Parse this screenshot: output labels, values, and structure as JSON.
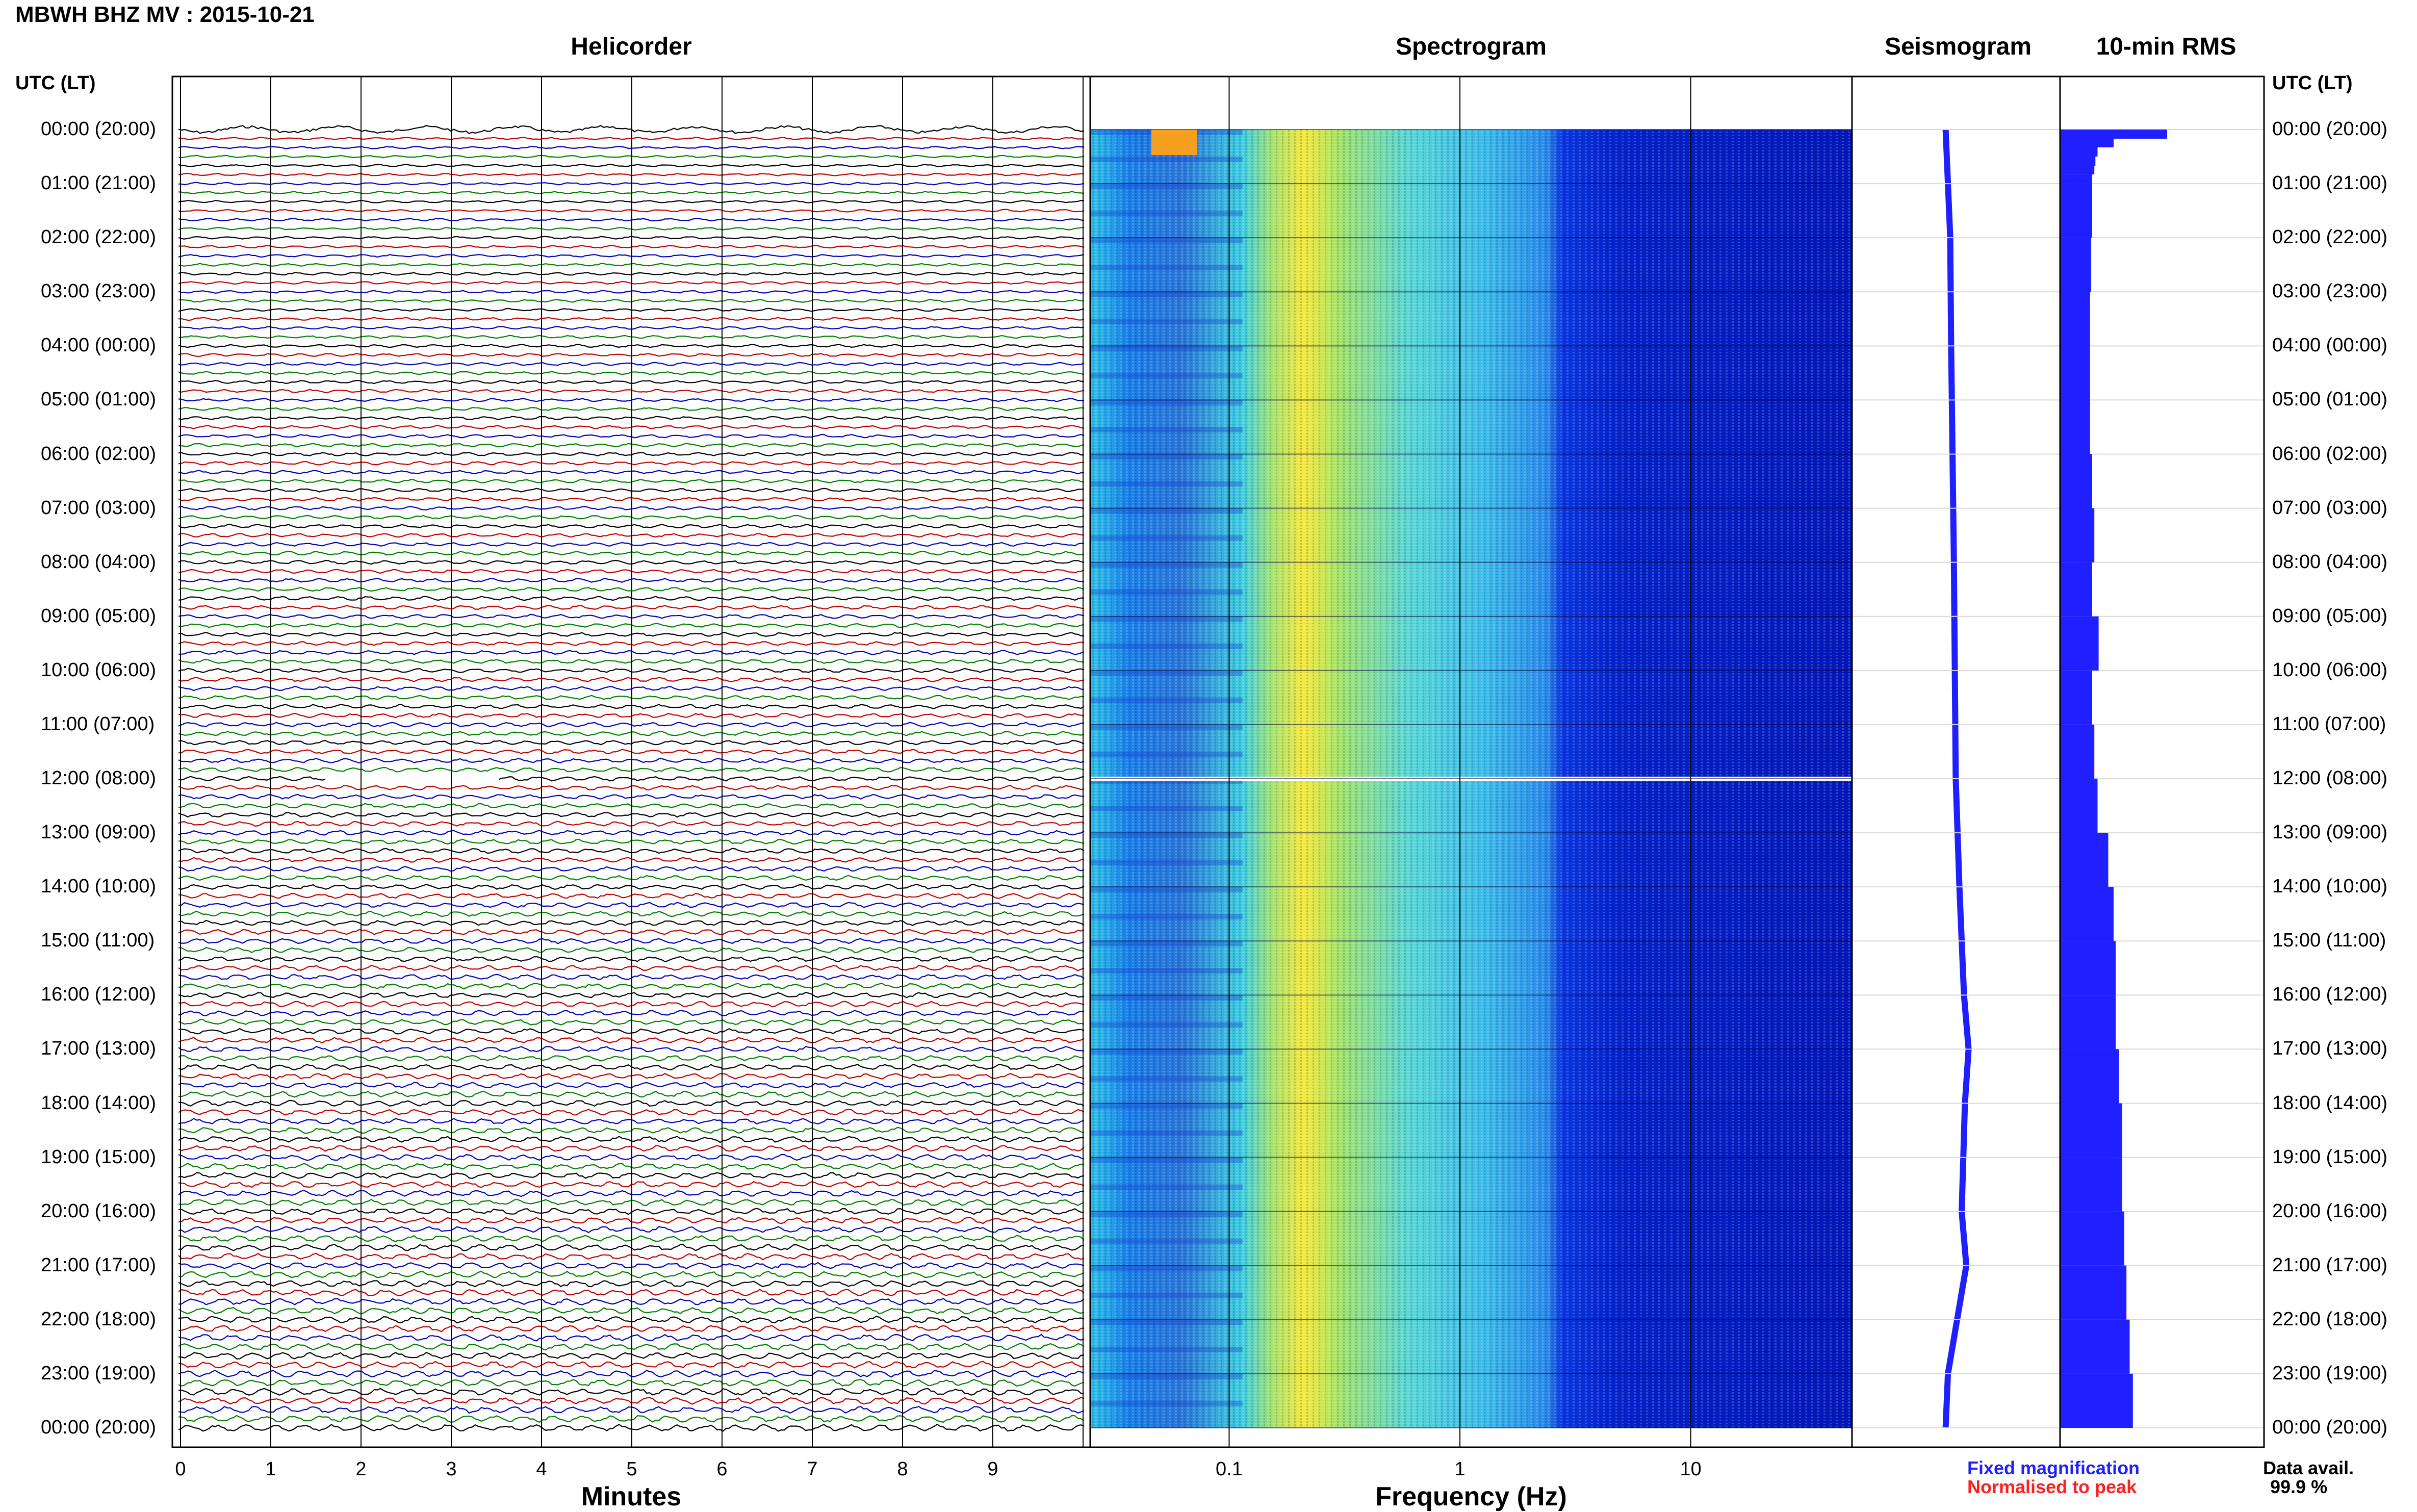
{
  "header": {
    "title": "MBWH BHZ MV : 2015-10-21"
  },
  "panels": {
    "helicorder_title": "Helicorder",
    "spectrogram_title": "Spectrogram",
    "seismogram_title": "Seismogram",
    "rms_title": "10-min RMS"
  },
  "axes": {
    "time_header_left": "UTC (LT)",
    "time_header_right": "UTC (LT)",
    "time_labels": [
      "00:00 (20:00)",
      "01:00 (21:00)",
      "02:00 (22:00)",
      "03:00 (23:00)",
      "04:00 (00:00)",
      "05:00 (01:00)",
      "06:00 (02:00)",
      "07:00 (03:00)",
      "08:00 (04:00)",
      "09:00 (05:00)",
      "10:00 (06:00)",
      "11:00 (07:00)",
      "12:00 (08:00)",
      "13:00 (09:00)",
      "14:00 (10:00)",
      "15:00 (11:00)",
      "16:00 (12:00)",
      "17:00 (13:00)",
      "18:00 (14:00)",
      "19:00 (15:00)",
      "20:00 (16:00)",
      "21:00 (17:00)",
      "22:00 (18:00)",
      "23:00 (19:00)",
      "00:00 (20:00)"
    ],
    "minutes_title": "Minutes",
    "minutes_ticks": [
      "0",
      "1",
      "2",
      "3",
      "4",
      "5",
      "6",
      "7",
      "8",
      "9"
    ],
    "frequency_title": "Frequency (Hz)",
    "frequency_ticks": [
      "0.1",
      "1",
      "10"
    ]
  },
  "legend": {
    "fixed": "Fixed magnification",
    "normalised": "Normalised to peak",
    "fixed_color": "#1f1fff",
    "normalised_color": "#ff1f1f"
  },
  "availability": {
    "label": "Data avail.",
    "value": "99.9 %"
  },
  "chart_data": [
    {
      "type": "line",
      "name": "helicorder",
      "xlabel": "Minutes",
      "xlim": [
        0,
        10
      ],
      "rows_per_hour": 6,
      "hours": 24,
      "trace_colors": [
        "#000000",
        "#c00000",
        "#0000c0",
        "#008000"
      ],
      "gap_hours": [
        12.0
      ]
    },
    {
      "type": "heatmap",
      "name": "spectrogram",
      "xlabel": "Frequency (Hz)",
      "xscale": "log",
      "xlim": [
        0.025,
        50
      ],
      "dominant_band_hz": [
        0.15,
        0.3
      ],
      "gap_hours": [
        12.0
      ]
    },
    {
      "type": "line",
      "name": "seismogram",
      "description_values": "offset trace, slight drift",
      "x": [
        0,
        2,
        4,
        6,
        8,
        10,
        12,
        14,
        16,
        17,
        18,
        20,
        21,
        22,
        23,
        24
      ],
      "y": [
        0.0,
        0.1,
        0.12,
        0.15,
        0.18,
        0.2,
        0.22,
        0.3,
        0.4,
        0.5,
        0.42,
        0.35,
        0.45,
        0.25,
        0.05,
        0.0
      ]
    },
    {
      "type": "bar",
      "name": "rms",
      "orientation": "horizontal",
      "hours": [
        0.0,
        0.17,
        0.33,
        0.5,
        0.67,
        0.83,
        1,
        2,
        3,
        4,
        5,
        6,
        7,
        8,
        9,
        10,
        11,
        12,
        13,
        14,
        15,
        16,
        17,
        18,
        19,
        20,
        21,
        22,
        23,
        24
      ],
      "values": [
        1.0,
        0.5,
        0.35,
        0.33,
        0.32,
        0.3,
        0.3,
        0.29,
        0.28,
        0.28,
        0.28,
        0.3,
        0.32,
        0.3,
        0.36,
        0.3,
        0.32,
        0.35,
        0.45,
        0.5,
        0.52,
        0.52,
        0.55,
        0.58,
        0.58,
        0.6,
        0.62,
        0.65,
        0.68,
        0.62
      ]
    }
  ]
}
